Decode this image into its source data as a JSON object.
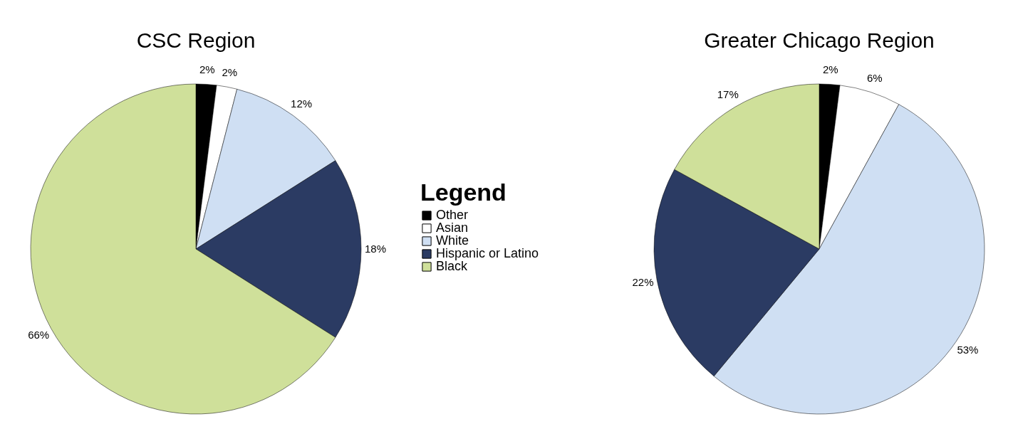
{
  "chart_data": {
    "type": "pie",
    "categories": [
      "Other",
      "Asian",
      "White",
      "Hispanic or Latino",
      "Black"
    ],
    "colors": [
      "#000000",
      "#ffffff",
      "#cfdff3",
      "#2b3b63",
      "#cfe09a"
    ],
    "legend": "right",
    "legend_title": "Legend",
    "series": [
      {
        "name": "CSC Region",
        "values": [
          2,
          2,
          12,
          18,
          66
        ],
        "value_labels": [
          "2%",
          "2%",
          "12%",
          "18%",
          "66%"
        ]
      },
      {
        "name": "Greater Chicago Region",
        "values": [
          2,
          6,
          53,
          22,
          17
        ],
        "value_labels": [
          "2%",
          "6%",
          "53%",
          "22%",
          "17%"
        ]
      }
    ]
  }
}
